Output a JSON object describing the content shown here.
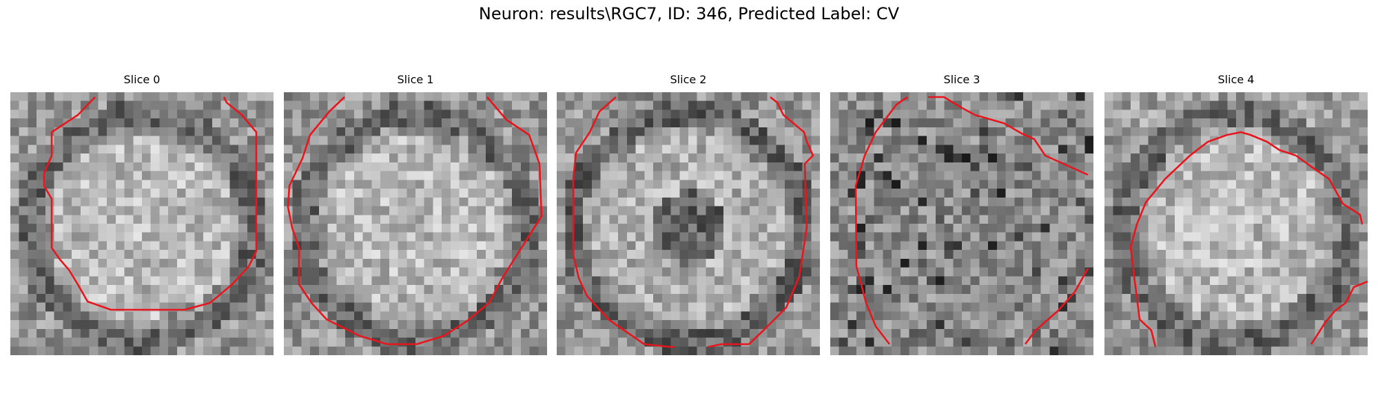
{
  "figure": {
    "title": "Neuron: results\\RGC7, ID: 346, Predicted Label: CV"
  },
  "colors": {
    "contour": "#e8161c",
    "background": "#ffffff"
  },
  "slices": [
    {
      "title": "Slice 0"
    },
    {
      "title": "Slice 1"
    },
    {
      "title": "Slice 2"
    },
    {
      "title": "Slice 3"
    },
    {
      "title": "Slice 4"
    }
  ]
}
